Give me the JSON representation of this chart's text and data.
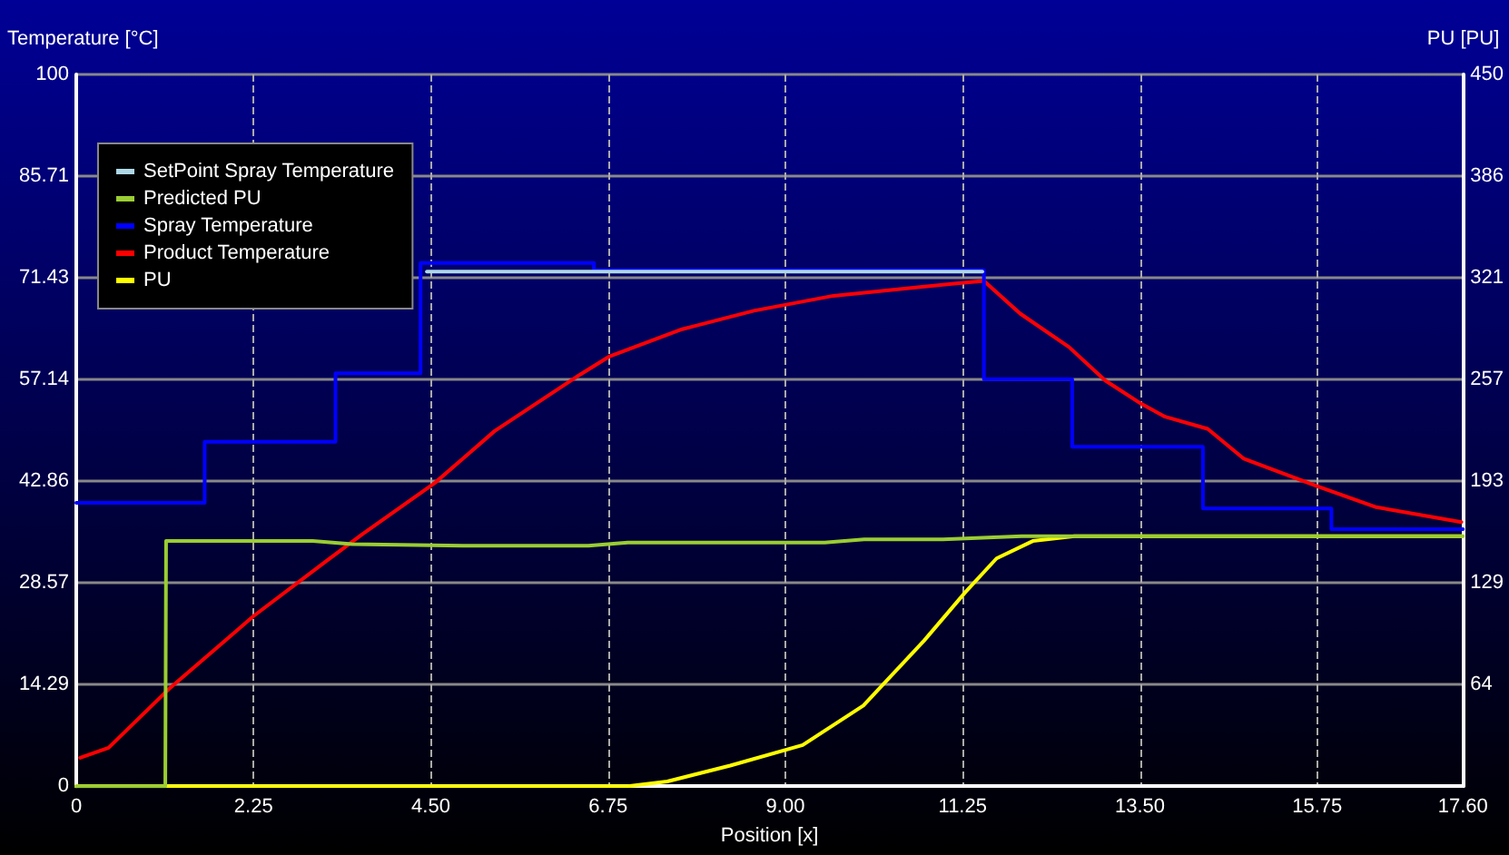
{
  "chart_data": {
    "type": "line",
    "xlabel": "Position [x]",
    "ylabel": "Temperature [°C]",
    "y2label": "PU [PU]",
    "xlim": [
      0,
      17.6
    ],
    "xticks": [
      0,
      2.25,
      {
        "value": 4.5,
        "label": "4.50"
      },
      6.75,
      {
        "value": 9,
        "label": "9.00"
      },
      11.25,
      {
        "value": 13.5,
        "label": "13.50"
      },
      15.75,
      {
        "value": 17.6,
        "label": "17.60"
      }
    ],
    "ylim": [
      0,
      100
    ],
    "yticks": [
      0,
      14.29,
      28.57,
      42.86,
      57.14,
      71.43,
      85.71,
      100
    ],
    "y2lim": [
      0,
      450
    ],
    "y2ticks": [
      {
        "value": 64.29,
        "label": "64"
      },
      {
        "value": 128.57,
        "label": "129"
      },
      {
        "value": 192.86,
        "label": "193"
      },
      {
        "value": 257.14,
        "label": "257"
      },
      {
        "value": 321.43,
        "label": "321"
      },
      {
        "value": 385.71,
        "label": "386"
      },
      450
    ],
    "grid": true,
    "legend": "top left",
    "marker": "none",
    "line_style": "solid",
    "series": [
      {
        "name": "SetPoint Spray Temperature",
        "type": "step",
        "color": "#add8e6",
        "x": [
          4.45,
          11.5
        ],
        "values": [
          72.3,
          72.3
        ]
      },
      {
        "name": "Predicted PU",
        "axis": "y2",
        "color": "#9acd32",
        "x": [
          0,
          1.13,
          1.14,
          3.0,
          3.5,
          5.0,
          6.5,
          7.0,
          8.5,
          9.5,
          10.0,
          11.0,
          12.0,
          13.0,
          17.6
        ],
        "values": [
          0,
          0,
          155,
          155,
          153,
          152,
          152,
          154,
          154,
          154,
          156,
          156,
          158,
          158,
          158
        ]
      },
      {
        "name": "Spray Temperature",
        "type": "step",
        "color": "#0000ff",
        "x": [
          0,
          1.63,
          3.29,
          4.37,
          6.57,
          11.52,
          12.64,
          14.3,
          15.93,
          17.6
        ],
        "values": [
          39.8,
          48.4,
          58,
          73.5,
          72.5,
          57.2,
          47.7,
          39,
          36.1,
          36.1
        ]
      },
      {
        "name": "Product Temperature",
        "color": "#ff0000",
        "x": [
          0.05,
          0.41,
          1.18,
          2.25,
          3.17,
          3.63,
          4.55,
          5.31,
          6.39,
          6.77,
          7.69,
          8.6,
          9.61,
          11.14,
          11.52,
          11.98,
          12.6,
          13.06,
          13.52,
          13.82,
          14.36,
          14.82,
          15.74,
          16.5,
          17.58
        ],
        "values": [
          4.0,
          5.4,
          13.7,
          23.9,
          31.6,
          35.4,
          42.6,
          49.9,
          57.8,
          60.4,
          64.2,
          66.8,
          68.9,
          70.6,
          71.0,
          66.4,
          61.7,
          57.0,
          53.7,
          51.9,
          50.2,
          46.0,
          42.2,
          39.2,
          37.1
        ]
      },
      {
        "name": "PU",
        "axis": "y2",
        "color": "#ffff00",
        "x": [
          0,
          7.0,
          7.5,
          8.3,
          9.22,
          9.99,
          10.76,
          11.29,
          11.68,
          12.14,
          12.67,
          17.6
        ],
        "values": [
          0,
          0,
          3,
          13,
          26,
          51,
          92,
          123,
          144,
          155,
          158,
          158
        ]
      }
    ]
  }
}
